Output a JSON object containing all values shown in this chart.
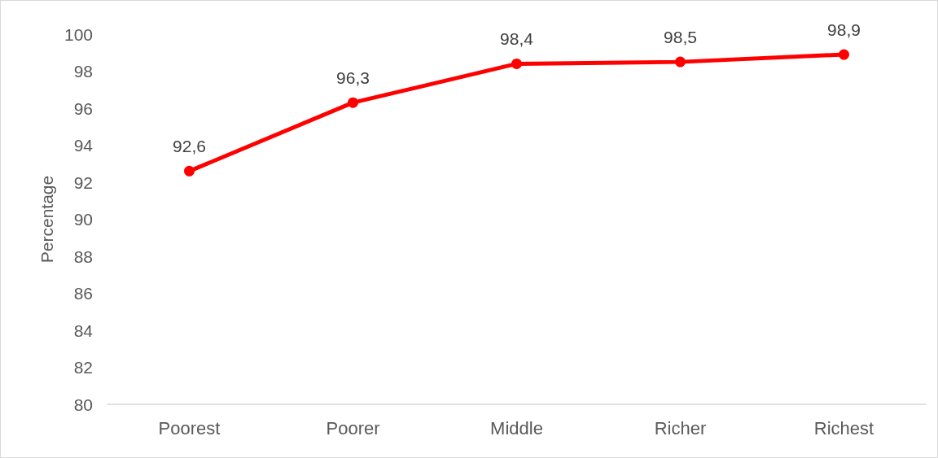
{
  "chart_data": {
    "type": "line",
    "ylabel": "Percentage",
    "categories": [
      "Poorest",
      "Poorer",
      "Middle",
      "Richer",
      "Richest"
    ],
    "series": [
      {
        "color": "#ff0000",
        "values": [
          92.6,
          96.3,
          98.4,
          98.5,
          98.9
        ],
        "value_labels": [
          "92,6",
          "96,3",
          "98,4",
          "98,5",
          "98,9"
        ]
      }
    ],
    "ylim": [
      80,
      100
    ],
    "yticks": [
      80,
      82,
      84,
      86,
      88,
      90,
      92,
      94,
      96,
      98,
      100
    ],
    "grid": false,
    "marker": "circle",
    "line_style": "solid"
  }
}
